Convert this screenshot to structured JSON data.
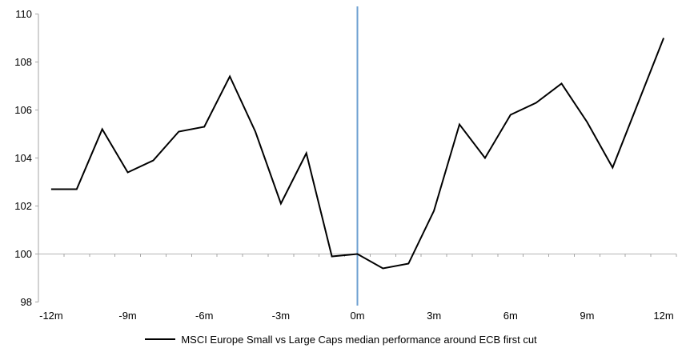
{
  "chart_data": {
    "type": "line",
    "title": "",
    "x_months": [
      -12,
      -11,
      -10,
      -9,
      -8,
      -7,
      -6,
      -5,
      -4,
      -3,
      -2,
      -1,
      0,
      1,
      2,
      3,
      4,
      5,
      6,
      7,
      8,
      9,
      10,
      11,
      12
    ],
    "series": [
      {
        "name": "MSCI Europe Small vs Large Caps median performance around ECB first cut",
        "values": [
          102.7,
          102.7,
          105.2,
          103.4,
          103.9,
          105.1,
          105.3,
          107.4,
          105.1,
          102.1,
          104.2,
          99.9,
          100.0,
          99.4,
          99.6,
          101.8,
          105.4,
          104.0,
          105.8,
          106.3,
          107.1,
          105.5,
          103.6,
          106.3,
          109.0
        ]
      }
    ],
    "xlabel": "",
    "ylabel": "",
    "ylim": [
      98,
      110
    ],
    "yticks": [
      98,
      100,
      102,
      104,
      106,
      108,
      110
    ],
    "xtick_labels": [
      "-12m",
      "-9m",
      "-6m",
      "-3m",
      "0m",
      "3m",
      "6m",
      "9m",
      "12m"
    ],
    "xtick_months": [
      -12,
      -9,
      -6,
      -3,
      0,
      3,
      6,
      9,
      12
    ],
    "baseline_value": 100,
    "event_line_month": 0,
    "grid": false,
    "legend_position": "bottom"
  },
  "legend": {
    "label": "MSCI Europe Small vs Large Caps median performance around ECB first cut"
  },
  "colors": {
    "series_line": "#000000",
    "event_line": "#6EA0D2",
    "axis": "#A6A6A6",
    "baseline": "#B3B3B3",
    "text": "#000000",
    "background": "#FFFFFF"
  }
}
